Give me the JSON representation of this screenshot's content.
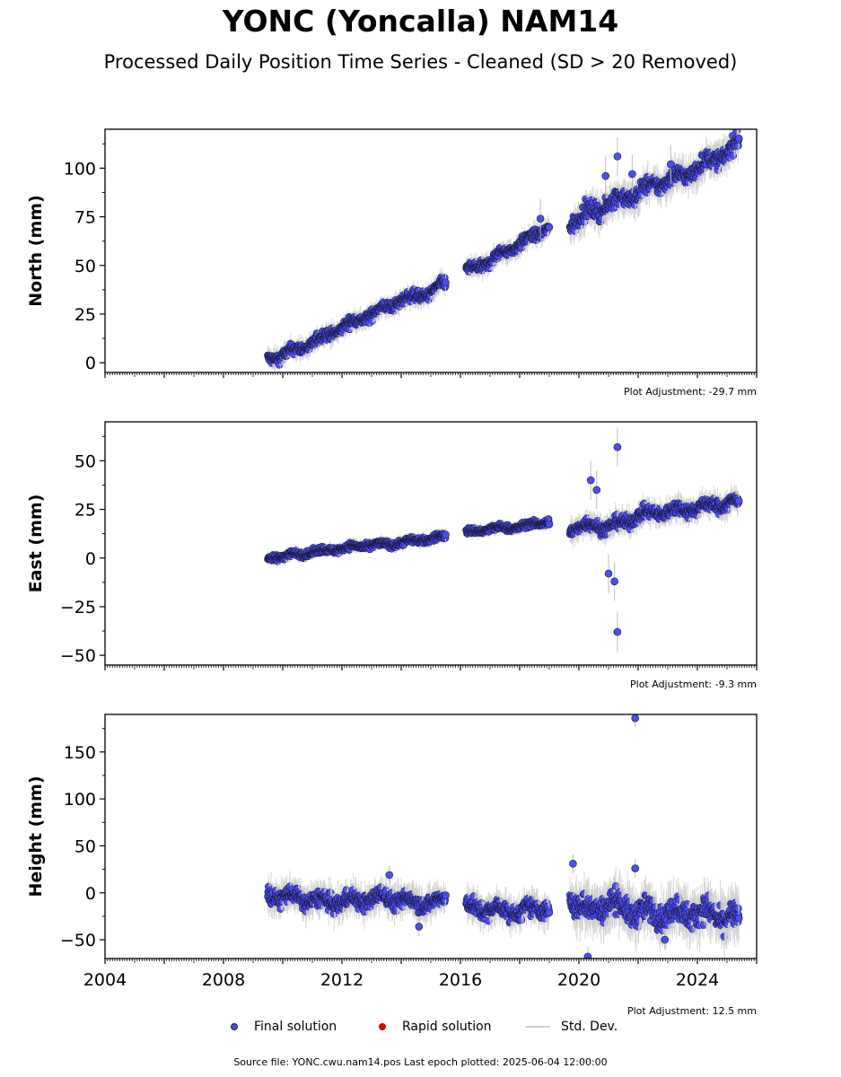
{
  "title": "YONC (Yoncalla) NAM14",
  "subtitle": "Processed Daily Position Time Series - Cleaned (SD > 20 Removed)",
  "chart_data": [
    {
      "type": "scatter",
      "ylabel": "North (mm)",
      "xlim": [
        2004,
        2026
      ],
      "ylim": [
        -5,
        120
      ],
      "yticks": [
        0,
        25,
        50,
        75,
        100
      ],
      "adjustment": "Plot Adjustment: -29.7 mm",
      "segments": [
        {
          "x": [
            2009.5,
            2010.0,
            2011.0,
            2012.0,
            2013.0,
            2014.0,
            2015.0,
            2015.5
          ],
          "y": [
            2,
            4,
            10,
            18,
            25,
            32,
            36,
            41
          ],
          "noise": 2.5
        },
        {
          "x": [
            2016.2,
            2017.0,
            2017.5,
            2018.0,
            2018.5,
            2019.0
          ],
          "y": [
            47,
            52,
            57,
            61,
            65,
            70
          ],
          "noise": 2.5
        },
        {
          "x": [
            2019.7,
            2020.2,
            2020.8,
            2021.2,
            2021.8,
            2022.5,
            2023.0,
            2023.5,
            2024.0,
            2024.5,
            2025.0,
            2025.4
          ],
          "y": [
            72,
            76,
            80,
            83,
            86,
            91,
            94,
            96,
            100,
            104,
            108,
            113
          ],
          "noise": 4
        }
      ],
      "outliers": [
        {
          "x": 2021.3,
          "y": 106
        },
        {
          "x": 2021.8,
          "y": 97
        },
        {
          "x": 2023.1,
          "y": 102
        },
        {
          "x": 2020.9,
          "y": 96
        },
        {
          "x": 2018.7,
          "y": 74
        }
      ]
    },
    {
      "type": "scatter",
      "ylabel": "East (mm)",
      "xlim": [
        2004,
        2026
      ],
      "ylim": [
        -55,
        70
      ],
      "yticks": [
        -50,
        -25,
        0,
        25,
        50
      ],
      "adjustment": "Plot Adjustment: -9.3 mm",
      "segments": [
        {
          "x": [
            2009.5,
            2010.5,
            2011.5,
            2012.5,
            2013.5,
            2014.5,
            2015.5
          ],
          "y": [
            0,
            2,
            4,
            6,
            7,
            9,
            11
          ],
          "noise": 1.5
        },
        {
          "x": [
            2016.2,
            2017.0,
            2018.0,
            2019.0
          ],
          "y": [
            13,
            15,
            16,
            19
          ],
          "noise": 1.5
        },
        {
          "x": [
            2019.7,
            2020.5,
            2021.0,
            2021.5,
            2022.0,
            2023.0,
            2024.0,
            2025.4
          ],
          "y": [
            15,
            17,
            16,
            18,
            22,
            24,
            26,
            29
          ],
          "noise": 3
        }
      ],
      "outliers": [
        {
          "x": 2021.3,
          "y": 57
        },
        {
          "x": 2021.3,
          "y": -38
        },
        {
          "x": 2021.2,
          "y": -12
        },
        {
          "x": 2021.0,
          "y": -8
        },
        {
          "x": 2020.4,
          "y": 40
        },
        {
          "x": 2020.6,
          "y": 35
        }
      ]
    },
    {
      "type": "scatter",
      "ylabel": "Height (mm)",
      "xlim": [
        2004,
        2026
      ],
      "ylim": [
        -70,
        190
      ],
      "yticks": [
        -50,
        0,
        50,
        100,
        150
      ],
      "xticks": [
        2004,
        2008,
        2012,
        2016,
        2020,
        2024
      ],
      "adjustment": "Plot Adjustment: 12.5 mm",
      "segments": [
        {
          "x": [
            2009.5,
            2010.5,
            2011.5,
            2012.5,
            2013.5,
            2014.5,
            2015.5
          ],
          "y": [
            -2,
            -5,
            -10,
            -8,
            -5,
            -10,
            -10
          ],
          "noise": 8
        },
        {
          "x": [
            2016.2,
            2017.0,
            2018.0,
            2019.0
          ],
          "y": [
            -15,
            -18,
            -20,
            -15
          ],
          "noise": 8
        },
        {
          "x": [
            2019.7,
            2020.3,
            2021.0,
            2021.5,
            2022.0,
            2023.0,
            2024.0,
            2025.4
          ],
          "y": [
            -5,
            -20,
            -10,
            -15,
            -20,
            -22,
            -20,
            -28
          ],
          "noise": 12
        }
      ],
      "outliers": [
        {
          "x": 2021.9,
          "y": 186
        },
        {
          "x": 2021.9,
          "y": 26
        },
        {
          "x": 2013.6,
          "y": 19
        },
        {
          "x": 2014.6,
          "y": -36
        },
        {
          "x": 2022.9,
          "y": -50
        },
        {
          "x": 2020.3,
          "y": -68
        },
        {
          "x": 2019.8,
          "y": 31
        }
      ]
    }
  ],
  "legend": {
    "final": "Final solution",
    "rapid": "Rapid solution",
    "stddev": "Std. Dev."
  },
  "colors": {
    "final": "#4a4ef0",
    "rapid": "#dd0000",
    "stddev": "#cfcfcf"
  },
  "source": "Source file: YONC.cwu.nam14.pos  Last epoch plotted: 2025-06-04 12:00:00"
}
